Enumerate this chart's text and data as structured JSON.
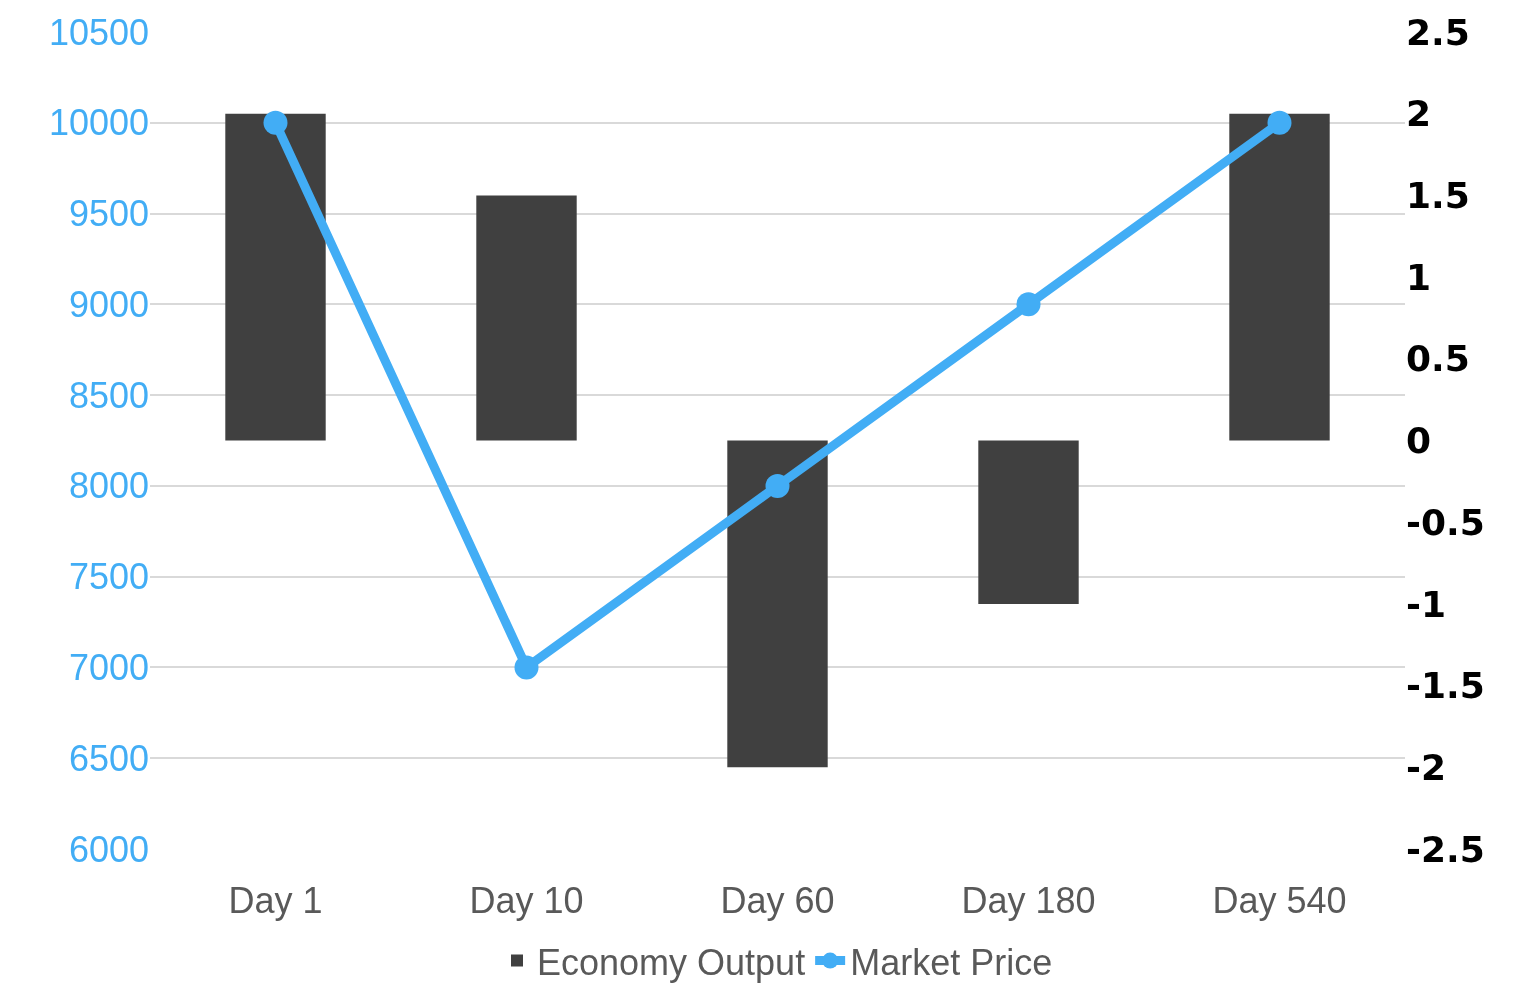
{
  "chart_data": {
    "type": "bar",
    "categories": [
      "Day 1",
      "Day 10",
      "Day 60",
      "Day 180",
      "Day 540"
    ],
    "series": [
      {
        "name": "Economy Output",
        "axis": "y2",
        "color": "#404040",
        "values": [
          2,
          1.5,
          -2,
          -1,
          2
        ]
      },
      {
        "name": "Market Price",
        "type": "line",
        "axis": "y",
        "color": "#42adf5",
        "marker": "circle",
        "values": [
          10000,
          7000,
          8000,
          9000,
          10000
        ]
      }
    ],
    "ylim": [
      6000,
      10500
    ],
    "yticks": [
      6000,
      6500,
      7000,
      7500,
      8000,
      8500,
      9000,
      9500,
      10000,
      10500
    ],
    "y2lim": [
      -2.5,
      2.5
    ],
    "y2ticks": [
      -2.5,
      -2,
      -1.5,
      -1,
      -0.5,
      0,
      0.5,
      1,
      1.5,
      2,
      2.5
    ],
    "grid": "y",
    "legend": "bottom"
  }
}
